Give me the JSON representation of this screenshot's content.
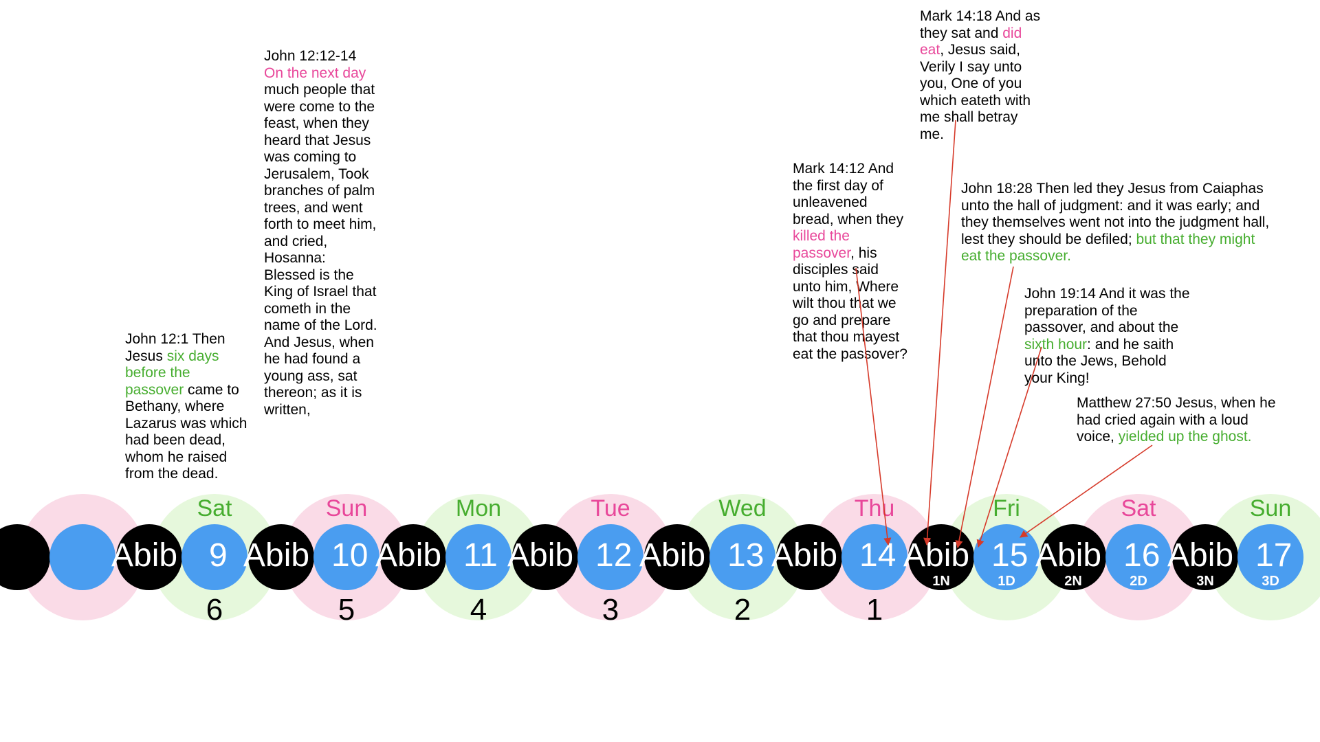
{
  "colors": {
    "pink_halo": "#fadbe7",
    "green_halo": "#e6f8dc",
    "night_dot": "#000000",
    "day_dot": "#4a9df0",
    "pink_text": "#e8479a",
    "green_text": "#46ad2f",
    "arrow": "#d63a2a"
  },
  "abib_word": "Abib",
  "days": [
    {
      "name": "",
      "number": "",
      "count": "",
      "night_label": "",
      "day_label": "",
      "tone": "pink"
    },
    {
      "name": "Sat",
      "number": "9",
      "count": "6",
      "night_label": "",
      "day_label": "",
      "tone": "green"
    },
    {
      "name": "Sun",
      "number": "10",
      "count": "5",
      "night_label": "",
      "day_label": "",
      "tone": "pink"
    },
    {
      "name": "Mon",
      "number": "11",
      "count": "4",
      "night_label": "",
      "day_label": "",
      "tone": "green"
    },
    {
      "name": "Tue",
      "number": "12",
      "count": "3",
      "night_label": "",
      "day_label": "",
      "tone": "pink"
    },
    {
      "name": "Wed",
      "number": "13",
      "count": "2",
      "night_label": "",
      "day_label": "",
      "tone": "green"
    },
    {
      "name": "Thu",
      "number": "14",
      "count": "1",
      "night_label": "",
      "day_label": "",
      "tone": "pink"
    },
    {
      "name": "Fri",
      "number": "15",
      "count": "",
      "night_label": "1N",
      "day_label": "1D",
      "tone": "green"
    },
    {
      "name": "Sat",
      "number": "16",
      "count": "",
      "night_label": "2N",
      "day_label": "2D",
      "tone": "pink"
    },
    {
      "name": "Sun",
      "number": "17",
      "count": "",
      "night_label": "3N",
      "day_label": "3D",
      "tone": "green"
    }
  ],
  "notes": {
    "john12_1": {
      "parts": [
        {
          "t": "John 12:1 Then Jesus ",
          "c": ""
        },
        {
          "t": "six days before the passover",
          "c": "green"
        },
        {
          "t": " came to Bethany, where Lazarus was which had been dead, whom he raised from the dead.",
          "c": ""
        }
      ]
    },
    "john12_12": {
      "parts": [
        {
          "t": "John 12:12-14 ",
          "c": ""
        },
        {
          "t": "On the next day",
          "c": "pink"
        },
        {
          "t": " much people that were come to the feast, when they heard that Jesus was coming to Jerusalem, Took branches of palm trees, and went forth to meet him, and cried, Hosanna: Blessed is the King of Israel that cometh in the name of the Lord. And Jesus, when he had found a young ass, sat thereon; as it is written,",
          "c": ""
        }
      ]
    },
    "mark14_12": {
      "parts": [
        {
          "t": "Mark 14:12 And the first day of unleavened bread, when they ",
          "c": ""
        },
        {
          "t": "killed the passover",
          "c": "pink"
        },
        {
          "t": ", his disciples said unto him, Where wilt thou that we go and prepare that thou mayest eat the passover?",
          "c": ""
        }
      ]
    },
    "mark14_18": {
      "parts": [
        {
          "t": "Mark 14:18 And as they sat and ",
          "c": ""
        },
        {
          "t": "did eat",
          "c": "pink"
        },
        {
          "t": ", Jesus said, Verily I say unto you, One of you which eateth with me shall betray me.",
          "c": ""
        }
      ]
    },
    "john18_28": {
      "parts": [
        {
          "t": "John 18:28 Then led they Jesus from Caiaphas unto the hall of judgment: and it was early; and they themselves went not into the judgment hall, lest they should be defiled; ",
          "c": ""
        },
        {
          "t": "but that they might eat the passover.",
          "c": "green"
        }
      ]
    },
    "john19_14": {
      "parts": [
        {
          "t": "John 19:14 And it was the preparation of the passover, and about the ",
          "c": ""
        },
        {
          "t": "sixth hour",
          "c": "green"
        },
        {
          "t": ": and he saith unto the Jews, Behold your King!",
          "c": ""
        }
      ]
    },
    "matt27_50": {
      "parts": [
        {
          "t": "Matthew 27:50 Jesus, when he had cried again with a loud voice, ",
          "c": ""
        },
        {
          "t": "yielded up the ghost.",
          "c": "green"
        }
      ]
    }
  }
}
